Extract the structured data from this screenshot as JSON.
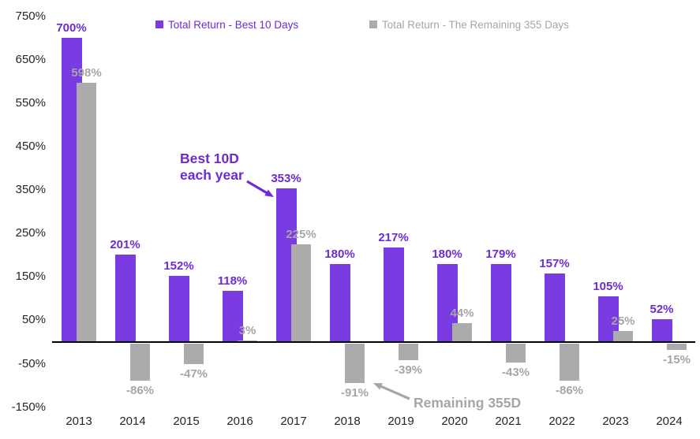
{
  "chart_data": {
    "type": "bar",
    "title": "",
    "xlabel": "",
    "ylabel": "",
    "categories": [
      "2013",
      "2014",
      "2015",
      "2016",
      "2017",
      "2018",
      "2019",
      "2020",
      "2021",
      "2022",
      "2023",
      "2024"
    ],
    "series": [
      {
        "name": "Total Return - Best 10 Days",
        "values": [
          700,
          201,
          152,
          118,
          353,
          180,
          217,
          180,
          179,
          157,
          105,
          52
        ],
        "labels": [
          "700%",
          "201%",
          "152%",
          "118%",
          "353%",
          "180%",
          "217%",
          "180%",
          "179%",
          "157%",
          "105%",
          "52%"
        ],
        "color": "#7A3BE3",
        "label_color": "#6B2BD6"
      },
      {
        "name": "Total Return - The Remaining 355 Days",
        "values": [
          598,
          -86,
          -47,
          3,
          225,
          -91,
          -39,
          44,
          -43,
          -86,
          25,
          -15
        ],
        "labels": [
          "598%",
          "-86%",
          "-47%",
          "3%",
          "225%",
          "-91%",
          "-39%",
          "44%",
          "-43%",
          "-86%",
          "25%",
          "-15%"
        ],
        "color": "#ABABAB",
        "label_color": "#A6A6A6"
      }
    ],
    "ylim": [
      -150,
      750
    ],
    "yticks": [
      {
        "value": 750,
        "label": "750%"
      },
      {
        "value": 650,
        "label": "650%"
      },
      {
        "value": 550,
        "label": "550%"
      },
      {
        "value": 450,
        "label": "450%"
      },
      {
        "value": 350,
        "label": "350%"
      },
      {
        "value": 250,
        "label": "250%"
      },
      {
        "value": 150,
        "label": "150%"
      },
      {
        "value": 50,
        "label": "50%"
      },
      {
        "value": -50,
        "label": "-50%"
      },
      {
        "value": -150,
        "label": "-150%"
      }
    ],
    "grid": false,
    "legend_position": "top",
    "annotations": [
      {
        "id": "best10",
        "lines": [
          "Best 10D",
          "each year"
        ],
        "color": "#6B2BD6",
        "arrow": {
          "from": [
            313,
            230
          ],
          "to": [
            347,
            250
          ]
        }
      },
      {
        "id": "remaining355",
        "lines": [
          "Remaining 355D"
        ],
        "color": "#A6A6A6",
        "arrow": {
          "from": [
            519,
            506
          ],
          "to": [
            473,
            486
          ]
        }
      }
    ]
  }
}
